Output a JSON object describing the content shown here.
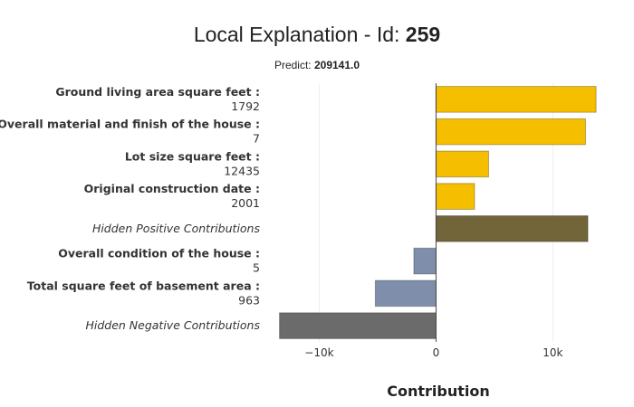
{
  "chart_data": {
    "type": "bar",
    "orientation": "horizontal",
    "title_prefix": "Local Explanation - Id: ",
    "title_id": "259",
    "subtitle_prefix": "Predict: ",
    "subtitle_value": "209141.0",
    "xlabel": "Contribution",
    "xlim": [
      -13600,
      14000
    ],
    "xticks": [
      {
        "value": -10000,
        "label": "−10k"
      },
      {
        "value": 0,
        "label": "0"
      },
      {
        "value": 10000,
        "label": "10k"
      }
    ],
    "grid": true,
    "legend": "none",
    "bars": [
      {
        "name": "Ground living area square feet :",
        "feature_value": "1792",
        "value": 13700,
        "color": "#f5bf00",
        "style": "bold"
      },
      {
        "name": "Overall material and finish of the house :",
        "feature_value": "7",
        "value": 12800,
        "color": "#f5bf00",
        "style": "bold"
      },
      {
        "name": "Lot size square feet :",
        "feature_value": "12435",
        "value": 4500,
        "color": "#f5bf00",
        "style": "bold"
      },
      {
        "name": "Original construction date :",
        "feature_value": "2001",
        "value": 3300,
        "color": "#f5bf00",
        "style": "bold"
      },
      {
        "name": "Hidden Positive Contributions",
        "feature_value": "",
        "value": 13000,
        "color": "#716539",
        "style": "italic"
      },
      {
        "name": "Overall condition of the house :",
        "feature_value": "5",
        "value": -1900,
        "color": "#7f8fab",
        "style": "bold"
      },
      {
        "name": "Total square feet of basement area :",
        "feature_value": "963",
        "value": -5200,
        "color": "#7f8fab",
        "style": "bold"
      },
      {
        "name": "Hidden Negative Contributions",
        "feature_value": "",
        "value": -13400,
        "color": "#6b6b6b",
        "style": "italic"
      }
    ]
  }
}
